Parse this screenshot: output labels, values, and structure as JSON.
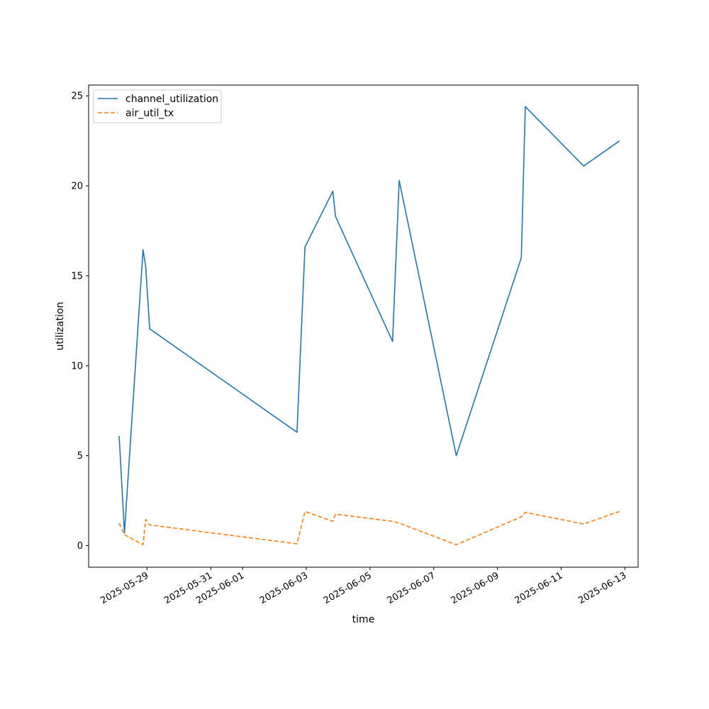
{
  "chart_data": {
    "type": "line",
    "title": "",
    "xlabel": "time",
    "ylabel": "utilization",
    "xlim": [
      "2025-05-27T04:00",
      "2025-06-13T10:00"
    ],
    "ylim": [
      -1.2,
      25.6
    ],
    "legend_location": "upper left",
    "grid": false,
    "x_ticks": [
      "2025-05-29",
      "2025-05-31",
      "2025-06-01",
      "2025-06-03",
      "2025-06-05",
      "2025-06-07",
      "2025-06-09",
      "2025-06-11",
      "2025-06-13"
    ],
    "y_ticks": [
      0,
      5,
      10,
      15,
      20,
      25
    ],
    "series": [
      {
        "name": "channel_utilization",
        "color": "#1f77b4",
        "style": "solid",
        "points": [
          [
            "2025-05-28T03:00",
            6.1
          ],
          [
            "2025-05-28T07:00",
            0.7
          ],
          [
            "2025-05-28T21:00",
            16.45
          ],
          [
            "2025-05-28T23:00",
            15.5
          ],
          [
            "2025-05-29T02:00",
            12.05
          ],
          [
            "2025-06-02T17:00",
            6.3
          ],
          [
            "2025-06-02T23:00",
            16.6
          ],
          [
            "2025-06-03T20:00",
            19.7
          ],
          [
            "2025-06-03T22:00",
            18.3
          ],
          [
            "2025-06-05T17:00",
            11.35
          ],
          [
            "2025-06-05T22:00",
            20.3
          ],
          [
            "2025-06-07T17:00",
            5.0
          ],
          [
            "2025-06-09T18:00",
            16.0
          ],
          [
            "2025-06-09T21:00",
            24.4
          ],
          [
            "2025-06-11T17:00",
            21.1
          ],
          [
            "2025-06-12T20:00",
            22.5
          ]
        ]
      },
      {
        "name": "air_util_tx",
        "color": "#ff7f0e",
        "style": "dashed",
        "points": [
          [
            "2025-05-28T03:00",
            1.25
          ],
          [
            "2025-05-28T07:00",
            0.6
          ],
          [
            "2025-05-28T21:00",
            0.05
          ],
          [
            "2025-05-28T23:00",
            1.45
          ],
          [
            "2025-05-29T02:00",
            1.15
          ],
          [
            "2025-06-02T17:00",
            0.1
          ],
          [
            "2025-06-02T23:00",
            1.9
          ],
          [
            "2025-06-03T20:00",
            1.35
          ],
          [
            "2025-06-03T22:00",
            1.75
          ],
          [
            "2025-06-05T17:00",
            1.35
          ],
          [
            "2025-06-05T22:00",
            1.25
          ],
          [
            "2025-06-07T17:00",
            0.05
          ],
          [
            "2025-06-09T18:00",
            1.6
          ],
          [
            "2025-06-09T21:00",
            1.85
          ],
          [
            "2025-06-11T17:00",
            1.2
          ],
          [
            "2025-06-12T20:00",
            1.9
          ]
        ]
      }
    ]
  }
}
